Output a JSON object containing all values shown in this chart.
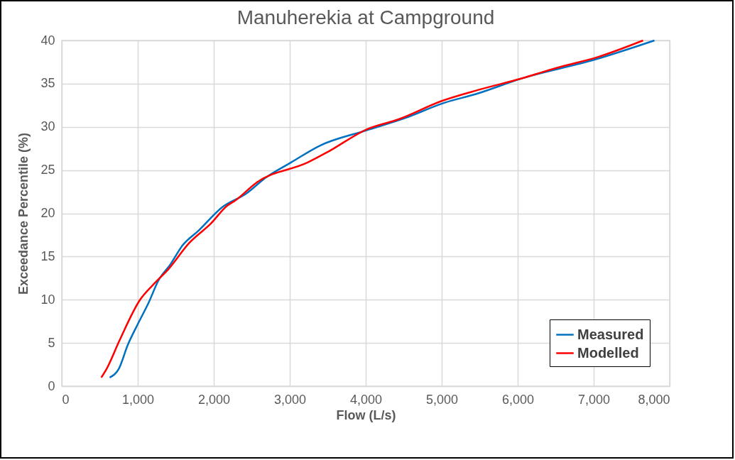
{
  "chart_data": {
    "type": "line",
    "title": "Manuherekia at Campground",
    "xlabel": "Flow (L/s)",
    "ylabel": "Exceedance Percentile (%)",
    "xlim": [
      0,
      8000
    ],
    "xticks": [
      0,
      {
        "value": 1000,
        "label": "1,000"
      },
      {
        "value": 2000,
        "label": "2,000"
      },
      {
        "value": 3000,
        "label": "3,000"
      },
      {
        "value": 4000,
        "label": "4,000"
      },
      {
        "value": 5000,
        "label": "5,000"
      },
      {
        "value": 6000,
        "label": "6,000"
      },
      {
        "value": 7000,
        "label": "7,000"
      },
      {
        "value": 8000,
        "label": "8,000"
      }
    ],
    "ylim": [
      0,
      40
    ],
    "yticks": [
      0,
      5,
      10,
      15,
      20,
      25,
      30,
      35,
      40
    ],
    "grid": true,
    "legend": "bottom right",
    "marker": "none",
    "line_style": "solid",
    "series": [
      {
        "name": "Measured",
        "color": "#0070c0",
        "x": [
          630,
          750,
          870,
          990,
          1150,
          1270,
          1430,
          1590,
          1800,
          2110,
          2430,
          2680,
          3020,
          3390,
          4010,
          4510,
          5040,
          5450,
          6050,
          7020,
          7800
        ],
        "values": [
          1,
          2,
          4.8,
          7,
          9.8,
          12.2,
          14.1,
          16.3,
          18,
          20.7,
          22.3,
          24.1,
          25.9,
          27.8,
          29.6,
          31,
          32.8,
          33.8,
          35.6,
          37.8,
          40
        ]
      },
      {
        "name": "Modelled",
        "color": "#ff0000",
        "x": [
          520,
          590,
          760,
          1030,
          1220,
          1400,
          1680,
          1960,
          2180,
          2270,
          2570,
          3240,
          3500,
          4010,
          4440,
          5000,
          5490,
          6050,
          6500,
          7060,
          7650
        ],
        "values": [
          1,
          2,
          5.3,
          10,
          11.9,
          13.5,
          16.6,
          18.8,
          20.9,
          21.4,
          23.6,
          25.9,
          27.1,
          29.7,
          30.9,
          33,
          34.3,
          35.6,
          36.8,
          38.1,
          40
        ]
      }
    ]
  }
}
